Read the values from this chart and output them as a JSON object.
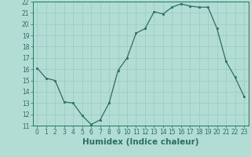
{
  "x": [
    0,
    1,
    2,
    3,
    4,
    5,
    6,
    7,
    8,
    9,
    10,
    11,
    12,
    13,
    14,
    15,
    16,
    17,
    18,
    19,
    20,
    21,
    22,
    23
  ],
  "y": [
    16.1,
    15.2,
    15.0,
    13.1,
    13.0,
    11.9,
    11.1,
    11.5,
    13.0,
    15.9,
    17.0,
    19.2,
    19.6,
    21.1,
    20.9,
    21.5,
    21.8,
    21.6,
    21.5,
    21.5,
    19.6,
    16.7,
    15.3,
    13.6
  ],
  "line_color": "#2d6e63",
  "marker_color": "#2d6e63",
  "bg_color": "#b2ddd4",
  "grid_color": "#9ecdc3",
  "xlabel": "Humidex (Indice chaleur)",
  "ylim": [
    11,
    22
  ],
  "xlim": [
    -0.5,
    23.5
  ],
  "yticks": [
    11,
    12,
    13,
    14,
    15,
    16,
    17,
    18,
    19,
    20,
    21,
    22
  ],
  "xticks": [
    0,
    1,
    2,
    3,
    4,
    5,
    6,
    7,
    8,
    9,
    10,
    11,
    12,
    13,
    14,
    15,
    16,
    17,
    18,
    19,
    20,
    21,
    22,
    23
  ],
  "tick_fontsize": 5.5,
  "label_fontsize": 7.5
}
